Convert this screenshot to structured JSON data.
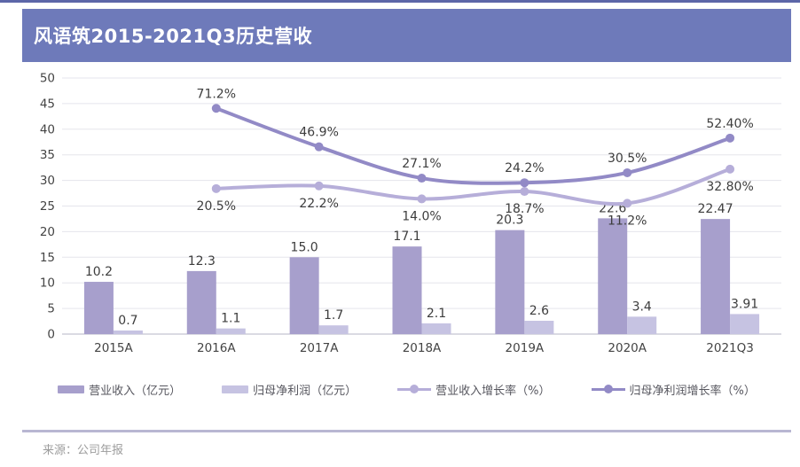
{
  "header": {
    "title": "风语筑2015-2021Q3历史营收"
  },
  "footer": {
    "source": "来源：公司年报"
  },
  "colors": {
    "top_strip": "#5c66a8",
    "title_bar_bg": "#6e7aba",
    "title_text": "#ffffff",
    "grid_line": "#e5e5ec",
    "zero_line": "#cdcdd9",
    "value_text": "#3d3d3d",
    "axis_text": "#444444",
    "legend_text": "#57575f",
    "divider": "#b9b7d2",
    "source_text": "#9c9c9c"
  },
  "chart_data": {
    "type": "combo-bar-line",
    "title": "风语筑2015-2021Q3历史营收",
    "categories": [
      "2015A",
      "2016A",
      "2017A",
      "2018A",
      "2019A",
      "2020A",
      "2021Q3"
    ],
    "series": [
      {
        "name": "营业收入（亿元）",
        "type": "bar",
        "axis": "left",
        "color": "#a79fcc",
        "values": [
          10.2,
          12.3,
          15.0,
          17.1,
          20.3,
          22.6,
          22.47
        ],
        "labels": [
          "10.2",
          "12.3",
          "15.0",
          "17.1",
          "20.3",
          "22.6",
          "22.47"
        ]
      },
      {
        "name": "归母净利润（亿元）",
        "type": "bar",
        "axis": "left",
        "color": "#c6c3e2",
        "values": [
          0.7,
          1.1,
          1.7,
          2.1,
          2.6,
          3.4,
          3.91
        ],
        "labels": [
          "0.7",
          "1.1",
          "1.7",
          "2.1",
          "2.6",
          "3.4",
          "3.91"
        ]
      },
      {
        "name": "营业收入增长率（%）",
        "type": "line",
        "axis": "hidden-secondary",
        "color": "#b6aed9",
        "label_side": "below",
        "values": [
          null,
          20.5,
          22.2,
          14.0,
          18.7,
          11.2,
          32.8
        ],
        "labels": [
          "",
          "20.5%",
          "22.2%",
          "14.0%",
          "18.7%",
          "11.2%",
          "32.80%"
        ]
      },
      {
        "name": "归母净利润增长率（%）",
        "type": "line",
        "axis": "hidden-secondary",
        "color": "#928ac6",
        "label_side": "above",
        "values": [
          null,
          71.2,
          46.9,
          27.1,
          24.2,
          30.5,
          52.4
        ],
        "labels": [
          "",
          "71.2%",
          "46.9%",
          "27.1%",
          "24.2%",
          "30.5%",
          "52.40%"
        ]
      }
    ],
    "y_axis": {
      "min": 0,
      "max": 50,
      "tick_step": 5,
      "ticks": [
        "0",
        "5",
        "10",
        "15",
        "20",
        "25",
        "30",
        "35",
        "40",
        "45",
        "50"
      ]
    },
    "hidden_line_axis_mapping": {
      "note": "growth-rate value v (%) is plotted at left-axis position 0.309*v + 22.07",
      "slope": 0.309,
      "intercept": 22.07
    },
    "grid": true,
    "legend_position": "bottom"
  }
}
